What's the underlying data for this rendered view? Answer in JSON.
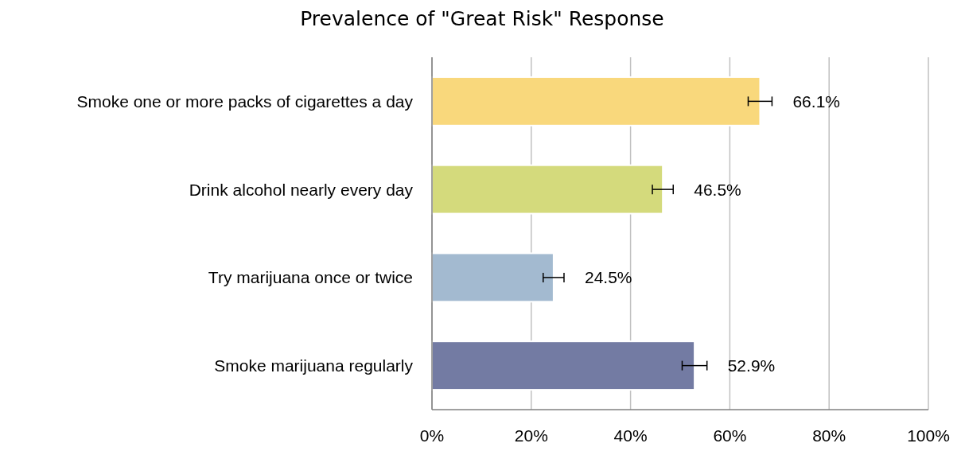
{
  "chart_data": {
    "type": "bar",
    "orientation": "horizontal",
    "title": "Prevalence of \"Great Risk\" Response",
    "categories": [
      "Smoke one or more packs of cigarettes a day",
      "Drink alcohol nearly every day",
      "Try marijuana once or twice",
      "Smoke marijuana regularly"
    ],
    "values": [
      66.1,
      46.5,
      24.5,
      52.9
    ],
    "colors": [
      "#f9d87c",
      "#d4da7c",
      "#a3bad0",
      "#737ba3"
    ],
    "errors": [
      2.4,
      2.1,
      2.1,
      2.5
    ],
    "value_labels": [
      "66.1%",
      "46.5%",
      "24.5%",
      "52.9%"
    ],
    "xlim": [
      0,
      100
    ],
    "xticks": [
      {
        "value": 0,
        "label": "0%"
      },
      {
        "value": 20,
        "label": "20%"
      },
      {
        "value": 40,
        "label": "40%"
      },
      {
        "value": 60,
        "label": "60%"
      },
      {
        "value": 80,
        "label": "80%"
      },
      {
        "value": 100,
        "label": "100%"
      }
    ],
    "grid": "x"
  }
}
